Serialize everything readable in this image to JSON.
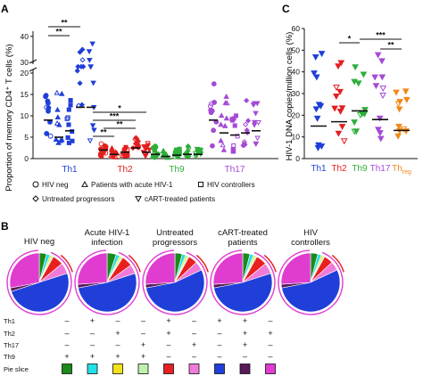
{
  "panel_labels": {
    "a": "A",
    "b": "B",
    "c": "C"
  },
  "colors": {
    "th1": "#1f3fd8",
    "th2": "#e41f1f",
    "th9": "#2fae3a",
    "th17": "#a44ad6",
    "threg": "#f08a1a"
  },
  "chart_data": [
    {
      "type": "scatter",
      "ylabel": "Proportion of memory CD4⁺ T cells (%)",
      "ylim": [
        0,
        42
      ],
      "axis_break": [
        22,
        30
      ],
      "yticks": [
        "0",
        "5",
        "10",
        "15",
        "20",
        "30",
        "40"
      ],
      "groups": [
        "Th1",
        "Th2",
        "Th9",
        "Th17"
      ],
      "conditions": [
        "HIV neg",
        "Patients with acute HIV-1",
        "HIV controllers",
        "Untreated progressors",
        "cART-treated patients"
      ],
      "medians": {
        "Th1": [
          9,
          5,
          6.5,
          12,
          12
        ],
        "Th2": [
          2,
          1,
          1.5,
          2.5,
          1.5
        ],
        "Th9": [
          1,
          0.5,
          0.8,
          1,
          1
        ],
        "Th17": [
          9,
          6,
          5.5,
          6,
          6.5
        ]
      },
      "significance": [
        {
          "group": "Th1",
          "label": "**"
        },
        {
          "group": "Th1",
          "label": "**"
        },
        {
          "group": "Th2",
          "label": "*"
        },
        {
          "group": "Th2",
          "label": "***"
        },
        {
          "group": "Th2",
          "label": "**"
        },
        {
          "group": "Th2",
          "label": "**"
        }
      ],
      "legend": [
        "HIV neg",
        "Patients with acute HIV-1",
        "HIV controllers",
        "Untreated progressors",
        "cART-treated patients"
      ]
    },
    {
      "type": "scatter",
      "ylabel": "HIV-1 DNA copies/million cells (%)",
      "ylim": [
        0,
        60
      ],
      "yticks": [
        "0",
        "10",
        "20",
        "30",
        "40",
        "50",
        "60"
      ],
      "categories": [
        "Th1",
        "Th2",
        "Th9",
        "Th17",
        "Th"
      ],
      "category_subscript": {
        "Th": "reg"
      },
      "medians": [
        15,
        17,
        22,
        18,
        13
      ],
      "significance": [
        {
          "pair": [
            "Th2",
            "Th9"
          ],
          "label": "*"
        },
        {
          "pair": [
            "Th9",
            "Threg"
          ],
          "label": "***"
        },
        {
          "pair": [
            "Th17",
            "Threg"
          ],
          "label": "**"
        }
      ]
    },
    {
      "type": "pie",
      "titles": [
        "HIV neg",
        "Acute HIV-1\ninfection",
        "Untreated\nprogressors",
        "cART-treated\npatients",
        "HIV\ncontrollers"
      ],
      "slice_colors": [
        "#1a8a1a",
        "#22e0e8",
        "#f2e21a",
        "#bff0b0",
        "#e82020",
        "#f07ad8",
        "#1f3fd8",
        "#5a1a5a",
        "#e03cd0"
      ],
      "combination_rows": [
        "Th1",
        "Th2",
        "Th17",
        "Th9",
        "Pie slice"
      ],
      "combinations": [
        [
          "–",
          "–",
          "–",
          "+"
        ],
        [
          "+",
          "–",
          "–",
          "+"
        ],
        [
          "–",
          "+",
          "–",
          "+"
        ],
        [
          "–",
          "–",
          "+",
          "+"
        ],
        [
          "+",
          "+",
          "–",
          "–"
        ],
        [
          "–",
          "–",
          "+",
          "–"
        ],
        [
          "+",
          "–",
          "–",
          "–"
        ],
        [
          "+",
          "+",
          "+",
          "–"
        ],
        [
          "–",
          "+",
          "–",
          "–"
        ]
      ],
      "pies": [
        [
          4,
          2,
          1,
          1,
          6,
          6,
          50,
          2,
          28
        ],
        [
          5,
          2,
          1,
          1,
          6,
          5,
          52,
          2,
          26
        ],
        [
          4,
          2,
          1,
          1,
          5,
          5,
          54,
          2,
          26
        ],
        [
          4,
          2,
          1,
          1,
          6,
          6,
          52,
          2,
          26
        ],
        [
          4,
          2,
          1,
          1,
          5,
          5,
          54,
          2,
          26
        ]
      ]
    }
  ]
}
